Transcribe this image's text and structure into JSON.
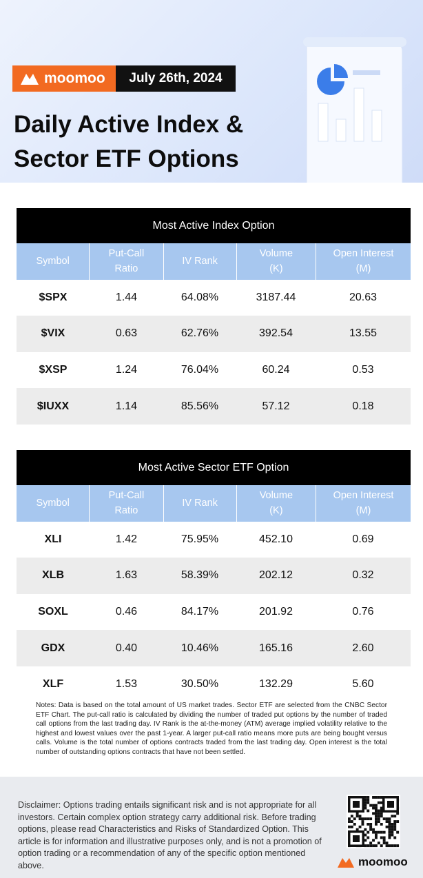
{
  "header": {
    "brand": "moomoo",
    "date": "July 26th, 2024",
    "title": "Daily Active Index &\nSector ETF Options"
  },
  "tables": [
    {
      "caption": "Most Active Index Option",
      "columns": [
        "Symbol",
        "Put-Call\nRatio",
        "IV Rank",
        "Volume\n(K)",
        "Open Interest\n(M)"
      ],
      "rows": [
        [
          "$SPX",
          "1.44",
          "64.08%",
          "3187.44",
          "20.63"
        ],
        [
          "$VIX",
          "0.63",
          "62.76%",
          "392.54",
          "13.55"
        ],
        [
          "$XSP",
          "1.24",
          "76.04%",
          "60.24",
          "0.53"
        ],
        [
          "$IUXX",
          "1.14",
          "85.56%",
          "57.12",
          "0.18"
        ]
      ]
    },
    {
      "caption": "Most Active Sector ETF Option",
      "columns": [
        "Symbol",
        "Put-Call\nRatio",
        "IV Rank",
        "Volume\n(K)",
        "Open Interest\n(M)"
      ],
      "rows": [
        [
          "XLI",
          "1.42",
          "75.95%",
          "452.10",
          "0.69"
        ],
        [
          "XLB",
          "1.63",
          "58.39%",
          "202.12",
          "0.32"
        ],
        [
          "SOXL",
          "0.46",
          "84.17%",
          "201.92",
          "0.76"
        ],
        [
          "GDX",
          "0.40",
          "10.46%",
          "165.16",
          "2.60"
        ],
        [
          "XLF",
          "1.53",
          "30.50%",
          "132.29",
          "5.60"
        ]
      ]
    }
  ],
  "notes": "Notes: Data is based on the total amount of US market trades. Sector ETF are selected from the CNBC Sector ETF Chart. The put-call ratio is calculated by dividing the number of traded put options by the number of traded call options from the last trading day. IV Rank is the at-the-money (ATM) average implied volatility relative to the highest and lowest values over the past 1-year. A larger put-call ratio means more puts are being bought versus calls. Volume is the total number of options contracts traded from the last trading day. Open interest is the total number of outstanding options contracts that have not been settled.",
  "footer": {
    "disclaimer": "Disclaimer: Options trading entails significant risk and is not appropriate for all investors. Certain complex option strategy carry additional risk. Before trading options, please read Characteristics and Risks of Standardized Option. This article is for information and illustrative purposes only, and is not a promotion of option trading or a recommendation of any of the specific option mentioned above.",
    "brand": "moomoo"
  }
}
